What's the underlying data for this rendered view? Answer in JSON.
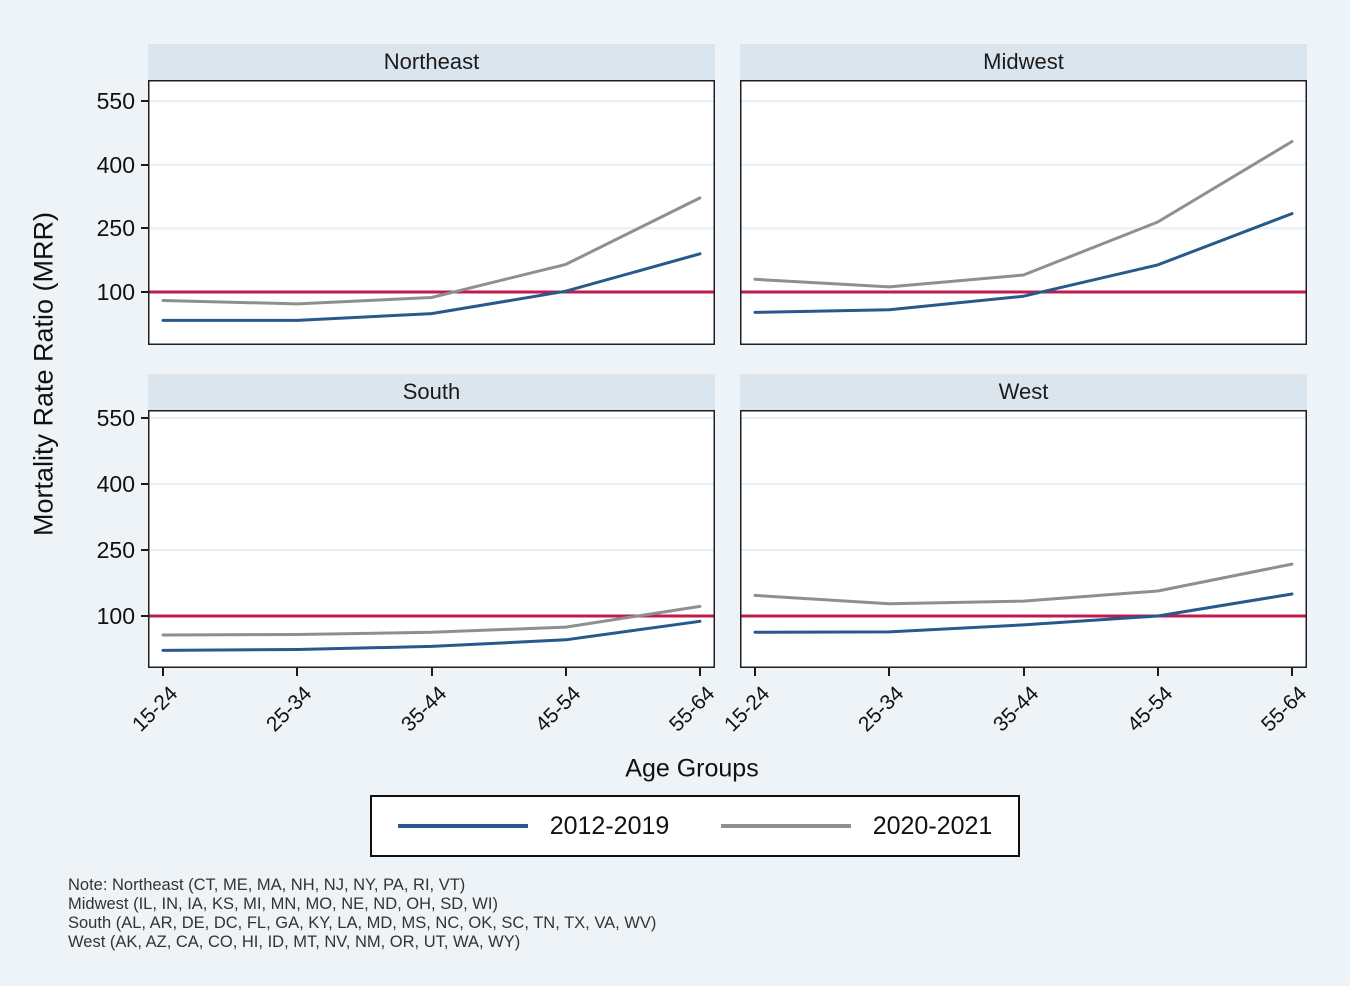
{
  "figure": {
    "y_axis_title": "Mortality Rate Ratio (MRR)",
    "x_axis_title": "Age Groups",
    "legend": [
      {
        "label": "2012-2019",
        "color": "#27598b"
      },
      {
        "label": "2020-2021",
        "color": "#8f8f8f"
      }
    ],
    "note_lines": [
      "Note: Northeast (CT, ME, MA, NH, NJ, NY, PA, RI, VT)",
      "Midwest (IL, IN, IA, KS, MI, MN, MO, NE, ND, OH, SD, WI)",
      "South (AL, AR, DE, DC, FL, GA, KY, LA, MD, MS, NC, OK, SC, TN, TX, VA, WV)",
      "West (AK, AZ, CA, CO, HI, ID, MT, NV, NM, OR, UT, WA, WY)"
    ]
  },
  "chart_data": {
    "type": "line",
    "title": "",
    "xlabel": "Age Groups",
    "ylabel": "Mortality Rate Ratio (MRR)",
    "categories": [
      "15-24",
      "25-34",
      "35-44",
      "45-54",
      "55-64"
    ],
    "yticks": [
      100,
      250,
      400,
      550
    ],
    "refline": 100,
    "grid": true,
    "legend_position": "bottom",
    "ylim_row0": [
      -25,
      600
    ],
    "ylim_row1": [
      -18,
      568
    ],
    "panels": [
      {
        "title": "Northeast",
        "row": 0,
        "col": 0,
        "series": [
          {
            "name": "2012-2019",
            "values": [
              33,
              33,
              49,
              102,
              190
            ]
          },
          {
            "name": "2020-2021",
            "values": [
              80,
              72,
              87,
              165,
              322
            ]
          }
        ]
      },
      {
        "title": "Midwest",
        "row": 0,
        "col": 1,
        "series": [
          {
            "name": "2012-2019",
            "values": [
              52,
              58,
              90,
              164,
              285
            ]
          },
          {
            "name": "2020-2021",
            "values": [
              130,
              112,
              140,
              265,
              455
            ]
          }
        ]
      },
      {
        "title": "South",
        "row": 1,
        "col": 0,
        "series": [
          {
            "name": "2012-2019",
            "values": [
              22,
              24,
              31,
              46,
              88
            ]
          },
          {
            "name": "2020-2021",
            "values": [
              57,
              58,
              63,
              75,
              122
            ]
          }
        ]
      },
      {
        "title": "West",
        "row": 1,
        "col": 1,
        "series": [
          {
            "name": "2012-2019",
            "values": [
              63,
              64,
              80,
              100,
              150
            ]
          },
          {
            "name": "2020-2021",
            "values": [
              147,
              128,
              134,
              157,
              218
            ]
          }
        ]
      }
    ],
    "colors": {
      "series_2012_2019": "#27598b",
      "series_2020_2021": "#8f8f8f",
      "refline": "#c01b4e",
      "background": "#eef3f7",
      "panel_header_bg": "#dbe5ee",
      "plot_bg": "#ffffff",
      "gridline": "#e9eff4",
      "frame": "#1f1f1f"
    }
  }
}
